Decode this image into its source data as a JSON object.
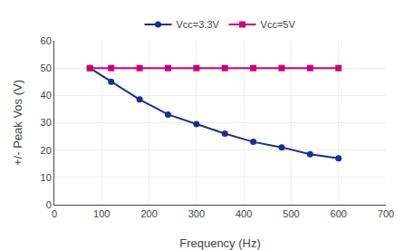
{
  "chart_data": {
    "type": "line",
    "x": [
      75,
      120,
      180,
      240,
      300,
      360,
      420,
      480,
      540,
      600
    ],
    "series": [
      {
        "name": "Vcc=3.3V",
        "color": "#1f2d8c",
        "marker": "circle",
        "values": [
          50,
          45,
          38.5,
          33,
          29.5,
          26,
          23,
          21,
          18.5,
          17
        ]
      },
      {
        "name": "Vcc=5V",
        "color": "#cc0077",
        "marker": "square",
        "values": [
          50,
          50,
          50,
          50,
          50,
          50,
          50,
          50,
          50,
          50
        ]
      }
    ],
    "xlabel": "Frequency (Hz)",
    "ylabel": "+/- Peak Vos (V)",
    "xlim": [
      0,
      700
    ],
    "ylim": [
      0,
      60
    ],
    "xticks": [
      0,
      100,
      200,
      300,
      400,
      500,
      600,
      700
    ],
    "yticks": [
      0,
      10,
      20,
      30,
      40,
      50,
      60
    ],
    "grid": true,
    "legend": "top"
  }
}
